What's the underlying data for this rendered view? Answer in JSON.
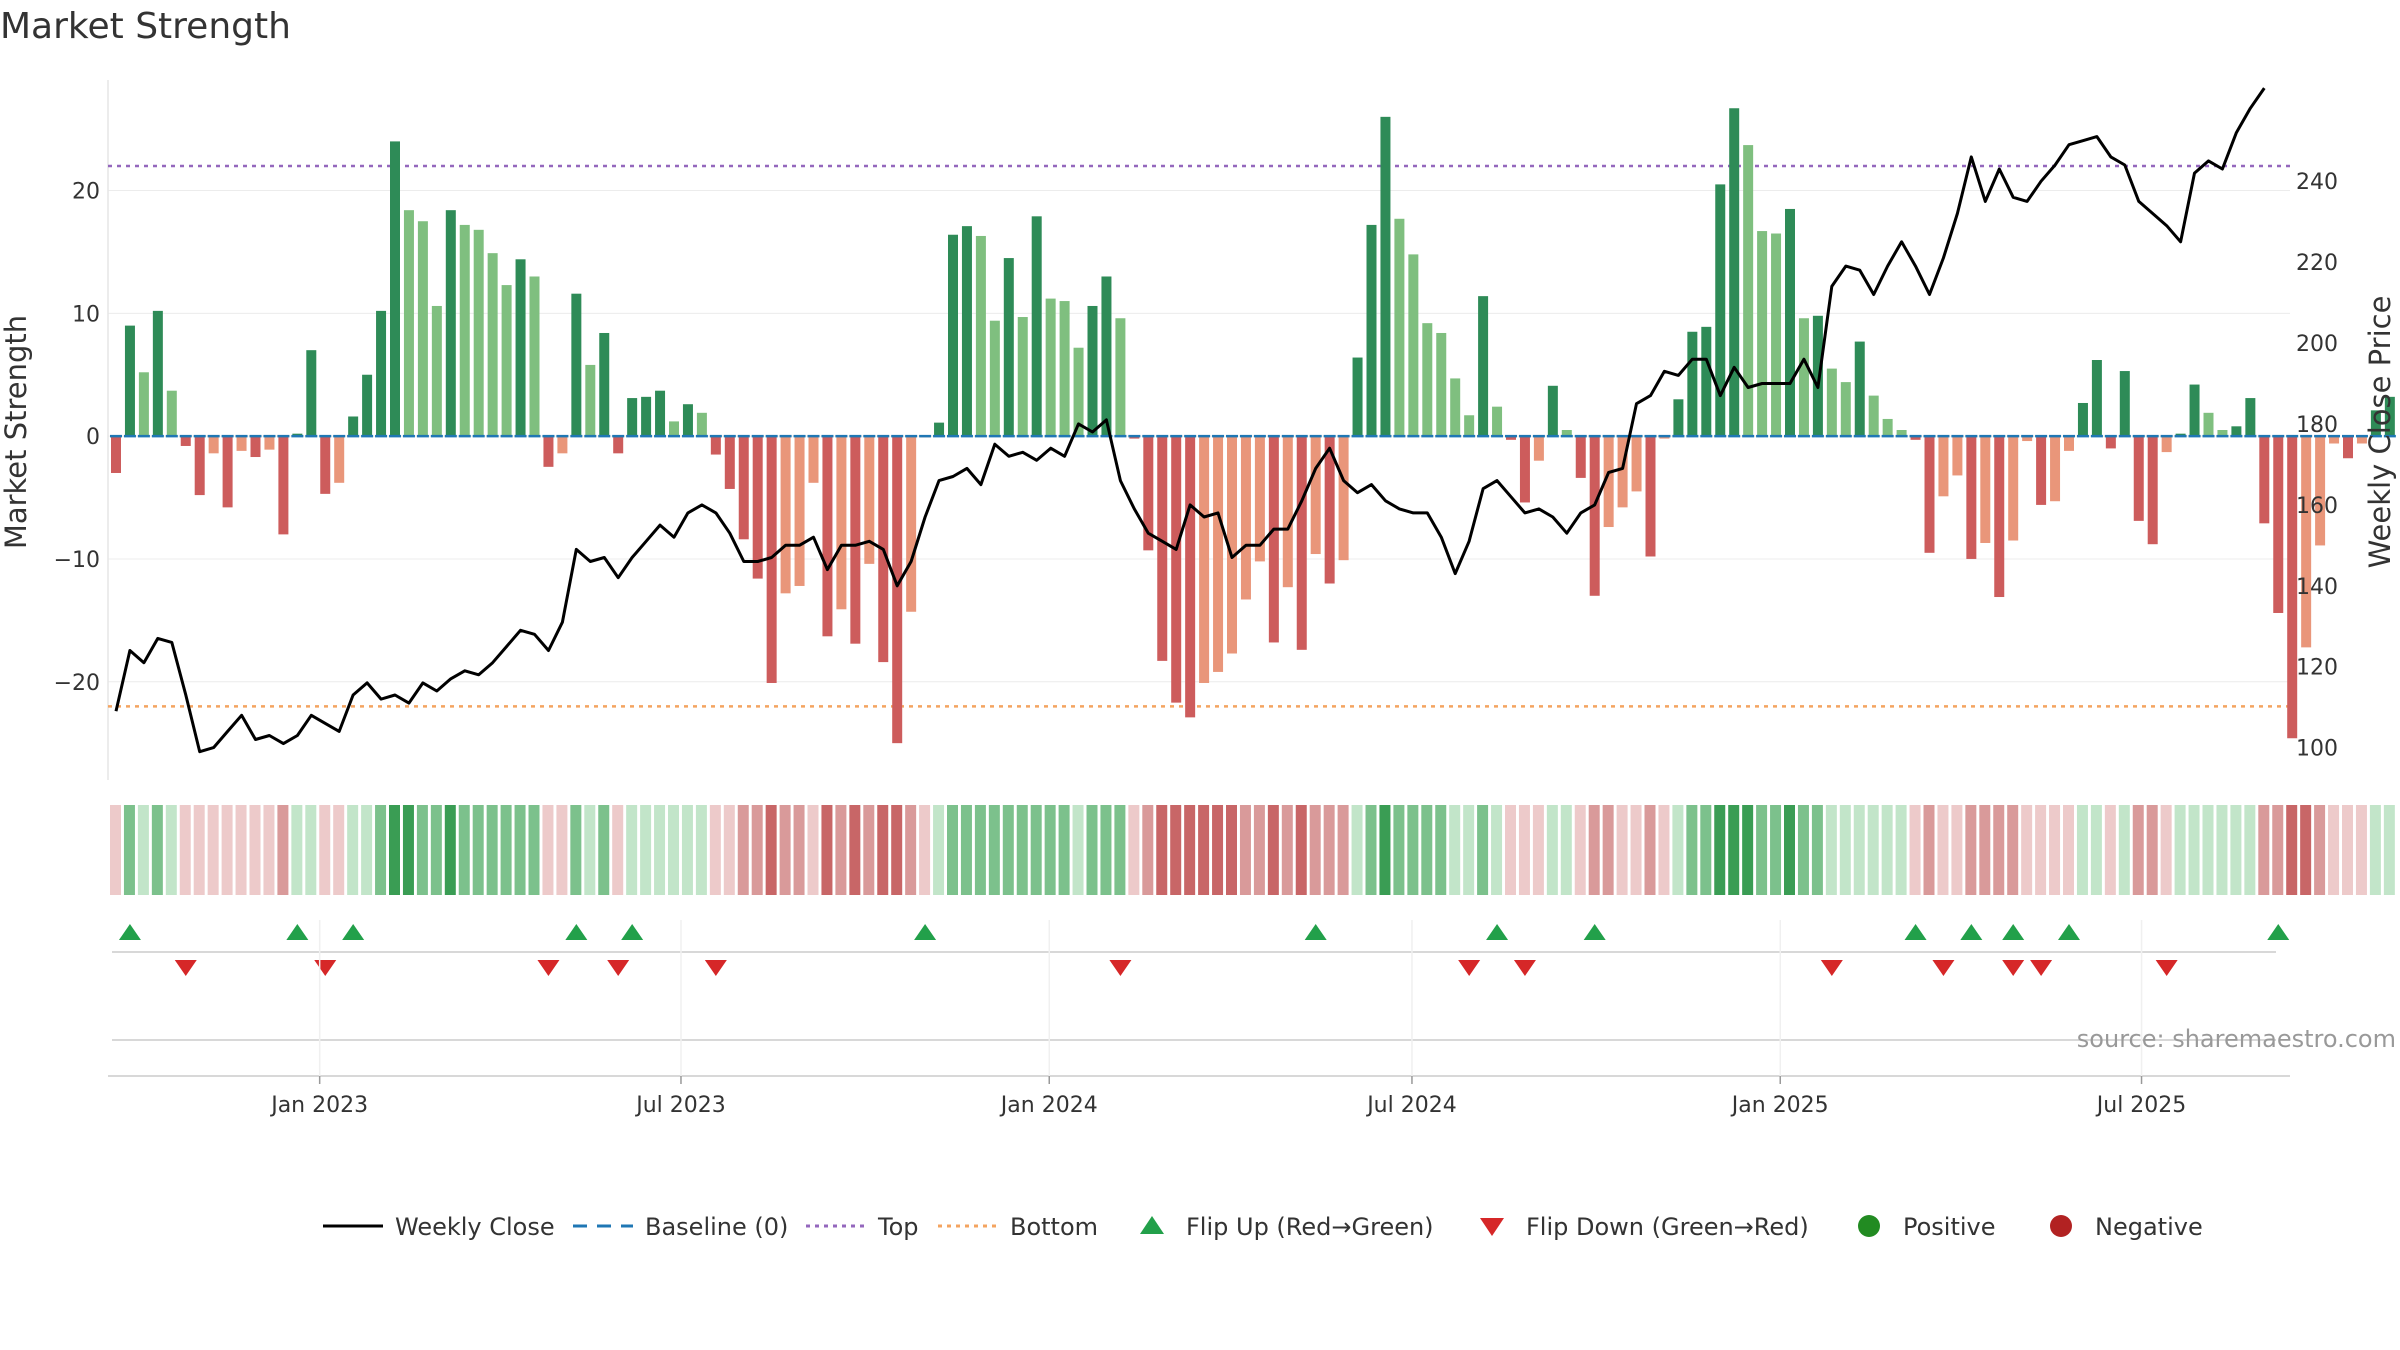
{
  "chart_data": {
    "type": "bar",
    "title": "Market Strength",
    "ylabel": "Market Strength",
    "y2label": "Weekly Close Price",
    "ylim": [
      -28,
      29
    ],
    "y2lim": [
      92,
      265
    ],
    "yticks": [
      20,
      10,
      0,
      -10,
      -20
    ],
    "ytick_labels": [
      "20",
      "10",
      "0",
      "−10",
      "−20"
    ],
    "y2ticks": [
      240,
      220,
      200,
      180,
      160,
      140,
      120,
      100
    ],
    "y2tick_labels": [
      "240",
      "220",
      "200",
      "180",
      "160",
      "140",
      "120",
      "100"
    ],
    "top_line": 22,
    "bottom_line": -22,
    "xlim_week": [
      0,
      157
    ],
    "xticks": [
      {
        "label": "Jan 2023",
        "week": 14.6
      },
      {
        "label": "Jul 2023",
        "week": 40.5
      },
      {
        "label": "Jan 2024",
        "week": 66.9
      },
      {
        "label": "Jul 2024",
        "week": 92.9
      },
      {
        "label": "Jan 2025",
        "week": 119.3
      },
      {
        "label": "Jul 2025",
        "week": 145.2
      }
    ],
    "strength": [
      -3,
      9,
      5.2,
      10.2,
      3.7,
      -0.8,
      -4.8,
      -1.4,
      -5.8,
      -1.2,
      -1.7,
      -1.1,
      -8,
      0.2,
      7,
      -4.7,
      -3.8,
      1.6,
      5,
      10.2,
      24,
      18.4,
      17.5,
      10.6,
      18.4,
      17.2,
      16.8,
      14.9,
      12.3,
      14.4,
      13,
      -2.5,
      -1.4,
      11.6,
      5.8,
      8.4,
      -1.4,
      3.1,
      3.2,
      3.7,
      1.2,
      2.6,
      1.9,
      -1.5,
      -4.3,
      -8.4,
      -11.6,
      -20.1,
      -12.8,
      -12.2,
      -3.8,
      -16.3,
      -14.1,
      -16.9,
      -10.4,
      -18.4,
      -25,
      -14.3,
      -0.1,
      1.1,
      16.4,
      17.1,
      16.3,
      9.4,
      14.5,
      9.7,
      17.9,
      11.2,
      11,
      7.2,
      10.6,
      13,
      9.6,
      -0.2,
      -9.3,
      -18.3,
      -21.7,
      -22.9,
      -20.1,
      -19.2,
      -17.7,
      -13.3,
      -10.2,
      -16.8,
      -12.3,
      -17.4,
      -9.6,
      -12,
      -10.1,
      6.4,
      17.2,
      26,
      17.7,
      14.8,
      9.2,
      8.4,
      4.7,
      1.7,
      11.4,
      2.4,
      -0.3,
      -5.4,
      -2,
      4.1,
      0.5,
      -3.4,
      -13,
      -7.4,
      -5.8,
      -4.5,
      -9.8,
      -0.2,
      3,
      8.5,
      8.9,
      20.5,
      26.7,
      23.7,
      16.7,
      16.5,
      18.5,
      9.6,
      9.8,
      5.5,
      4.4,
      7.7,
      3.3,
      1.4,
      0.5,
      -0.3,
      -9.5,
      -4.9,
      -3.2,
      -10,
      -8.7,
      -13.1,
      -8.5,
      -0.4,
      -5.6,
      -5.3,
      -1.2,
      2.7,
      6.2,
      -1,
      5.3,
      -6.9,
      -8.8,
      -1.3,
      0.2,
      4.2,
      1.9,
      0.5,
      0.8,
      3.1,
      -7.1,
      -14.4,
      -24.6,
      -17.2,
      -8.9,
      -0.6,
      -1.8,
      -0.6,
      2.1,
      3.2
    ],
    "price": [
      109,
      124,
      121,
      127,
      126,
      113,
      99,
      100,
      104,
      108,
      102,
      103,
      101,
      103,
      108,
      106,
      104,
      113,
      116,
      112,
      113,
      111,
      116,
      114,
      117,
      119,
      118,
      121,
      125,
      129,
      128,
      124,
      131,
      149,
      146,
      147,
      142,
      147,
      151,
      155,
      152,
      158,
      160,
      158,
      153,
      146,
      146,
      147,
      150,
      150,
      152,
      144,
      150,
      150,
      151,
      149,
      140,
      146,
      157,
      166,
      167,
      169,
      165,
      175,
      172,
      173,
      171,
      174,
      172,
      180,
      178,
      181,
      166,
      159,
      153,
      151,
      149,
      160,
      157,
      158,
      147,
      150,
      150,
      154,
      154,
      161,
      169,
      174,
      166,
      163,
      165,
      161,
      159,
      158,
      158,
      152,
      143,
      151,
      164,
      166,
      162,
      158,
      159,
      157,
      153,
      158,
      160,
      168,
      169,
      185,
      187,
      193,
      192,
      196,
      196,
      187,
      194,
      189,
      190,
      190,
      190,
      196,
      189,
      214,
      219,
      218,
      212,
      219,
      225,
      219,
      212,
      221,
      232,
      246,
      235,
      243,
      236,
      235,
      240,
      244,
      249,
      250,
      251,
      246,
      244,
      235,
      232,
      229,
      225,
      242,
      245,
      243,
      252,
      258,
      263
    ],
    "x_dates_approx": "weekly, Sep 2022 to Oct 2025",
    "flip_up": [
      1,
      13,
      17,
      33,
      37,
      58,
      86,
      99,
      106,
      129,
      133,
      136,
      140,
      155
    ],
    "flip_down": [
      5,
      15,
      31,
      36,
      43,
      72,
      97,
      101,
      123,
      131,
      136,
      138,
      147
    ],
    "band_colors": {
      "green_dark": "#3a9d54",
      "green_mid": "#7cc18c",
      "green_light": "#c2e5c9",
      "red_dark": "#c86667",
      "red_mid": "#d99a9a",
      "red_light": "#edcaca"
    },
    "colors": {
      "bar_green_dark": "#2e8b57",
      "bar_green_light": "#7fbf7f",
      "bar_red_dark": "#cd5c5c",
      "bar_red_light": "#e9967a",
      "price_line": "#000000",
      "baseline": "#1f77b4",
      "top": "#9467bd",
      "bottom": "#f4a460",
      "flip_up": "#22a04a",
      "flip_down": "#d62728",
      "positive": "#228b22",
      "negative": "#b22222"
    },
    "legend": [
      {
        "label": "Weekly Close",
        "kind": "line",
        "color": "#000000"
      },
      {
        "label": "Baseline (0)",
        "kind": "dash",
        "color": "#1f77b4"
      },
      {
        "label": "Top",
        "kind": "dot",
        "color": "#9467bd"
      },
      {
        "label": "Bottom",
        "kind": "dot",
        "color": "#f4a460"
      },
      {
        "label": "Flip Up (Red→Green)",
        "kind": "tri-up",
        "color": "#22a04a"
      },
      {
        "label": "Flip Down (Green→Red)",
        "kind": "tri-down",
        "color": "#d62728"
      },
      {
        "label": "Positive",
        "kind": "circle",
        "color": "#228b22"
      },
      {
        "label": "Negative",
        "kind": "circle",
        "color": "#b22222"
      }
    ]
  },
  "source": "source: sharemaestro.com"
}
